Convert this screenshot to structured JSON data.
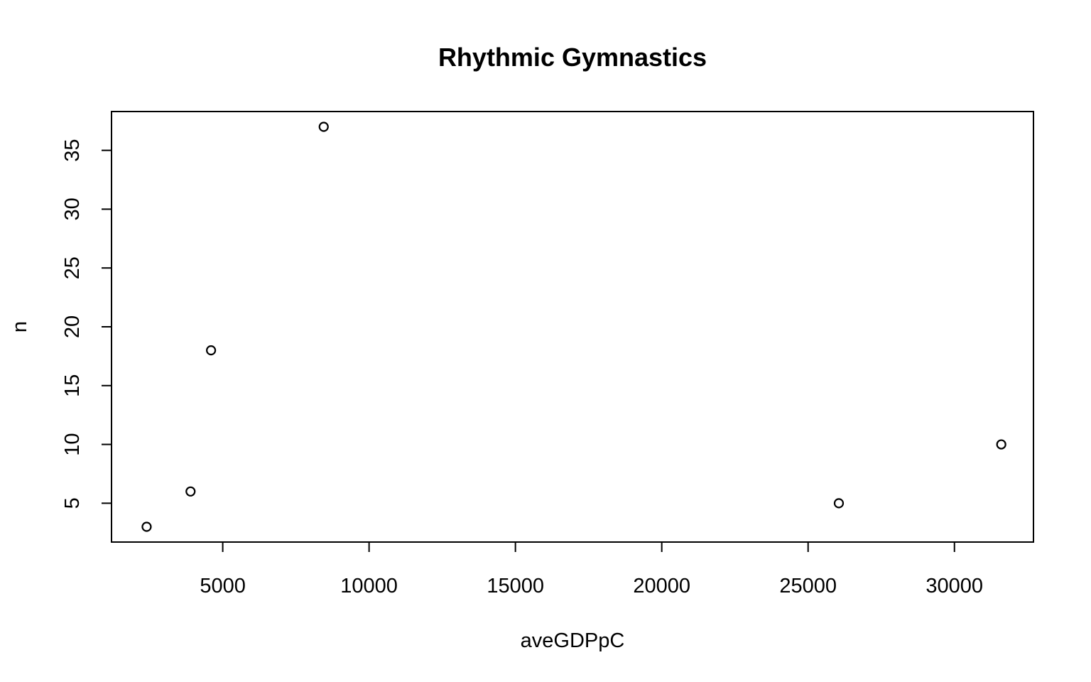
{
  "chart_data": {
    "type": "scatter",
    "title": "Rhythmic Gymnastics",
    "xlabel": "aveGDPpC",
    "ylabel": "n",
    "x": [
      2400,
      3900,
      4600,
      8450,
      26050,
      31600
    ],
    "y": [
      3,
      6,
      18,
      37,
      5,
      10
    ],
    "xlim": [
      1200,
      32700
    ],
    "ylim": [
      1.7,
      38.3
    ],
    "xticks": [
      5000,
      10000,
      15000,
      20000,
      25000,
      30000
    ],
    "yticks": [
      5,
      10,
      15,
      20,
      25,
      30,
      35
    ],
    "grid": false,
    "legend": "none",
    "marker": "open-circle",
    "color": "#000000"
  }
}
